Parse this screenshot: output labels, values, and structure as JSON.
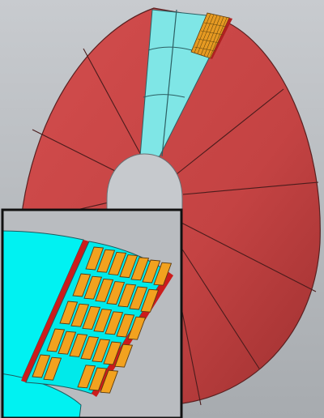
{
  "colors": {
    "background_top": "#c4c7cb",
    "background_bottom": "#a9adb1",
    "segment_red": "#c94545",
    "segment_red_dark": "#a33232",
    "segment_edge": "#4a1c1c",
    "hub_gray": "#c5c8cc",
    "coolant_cyan": "#7fe4e4",
    "inset_cyan": "#00f2f2",
    "coil_orange": "#f0a020",
    "coil_edge": "#6a4a10",
    "inset_frame": "#111111",
    "inset_background": "#b9bcc0"
  },
  "icons": {
    "main_view": "annular-segmented-disc",
    "inset_view": "magnified-coil-pack"
  }
}
